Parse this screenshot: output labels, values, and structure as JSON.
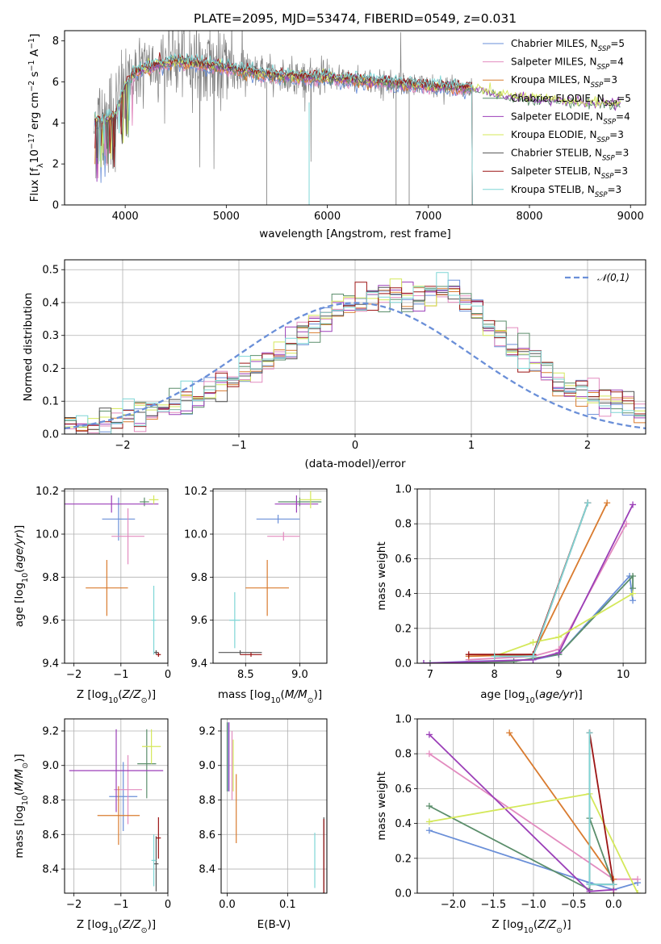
{
  "figure": {
    "title": "PLATE=2095, MJD=53474, FIBERID=0549, z=0.031"
  },
  "colors": [
    "#6a8fd8",
    "#e28bbf",
    "#d97b2f",
    "#5b8e6b",
    "#9b3fb8",
    "#d4e85a",
    "#555555",
    "#9c1515",
    "#7fd6d6"
  ],
  "legend_entries": [
    "Chabrier MILES, N_SSP=5",
    "Salpeter MILES, N_SSP=4",
    "Kroupa MILES, N_SSP=3",
    "Chabrier ELODIE, N_SSP=5",
    "Salpeter ELODIE, N_SSP=4",
    "Kroupa ELODIE, N_SSP=3",
    "Chabrier STELIB, N_SSP=3",
    "Salpeter STELIB, N_SSP=3",
    "Kroupa STELIB, N_SSP=3"
  ],
  "legend_display": [
    {
      "main": "Chabrier MILES, N",
      "sub": "SSP",
      "tail": "=5"
    },
    {
      "main": "Salpeter MILES, N",
      "sub": "SSP",
      "tail": "=4"
    },
    {
      "main": "Kroupa MILES, N",
      "sub": "SSP",
      "tail": "=3"
    },
    {
      "main": "Chabrier ELODIE, N",
      "sub": "SSP",
      "tail": "=5"
    },
    {
      "main": "Salpeter ELODIE, N",
      "sub": "SSP",
      "tail": "=4"
    },
    {
      "main": "Kroupa ELODIE, N",
      "sub": "SSP",
      "tail": "=3"
    },
    {
      "main": "Chabrier STELIB, N",
      "sub": "SSP",
      "tail": "=3"
    },
    {
      "main": "Salpeter STELIB, N",
      "sub": "SSP",
      "tail": "=3"
    },
    {
      "main": "Kroupa STELIB, N",
      "sub": "SSP",
      "tail": "=3"
    }
  ],
  "chart_data": [
    {
      "type": "line",
      "id": "spectrum",
      "title": "PLATE=2095, MJD=53474, FIBERID=0549, z=0.031",
      "xlabel": "wavelength [Angstrom, rest frame]",
      "ylabel": "Flux [f_λ 10^-17 erg cm^-2 s^-1 A^-1]",
      "xlim": [
        3400,
        9150
      ],
      "ylim": [
        0,
        8.5
      ],
      "xticks": [
        4000,
        5000,
        6000,
        7000,
        8000,
        9000
      ],
      "yticks": [
        0,
        2,
        4,
        6,
        8
      ],
      "grid": false,
      "legend": "top-right",
      "data_range": [
        3700,
        7430
      ],
      "data_range_elodie": [
        3700,
        8900
      ],
      "data_shape": {
        "x": [
          3700,
          3900,
          4000,
          4100,
          4300,
          4500,
          4700,
          5000,
          5200,
          5500,
          6000,
          6500,
          6800,
          7000,
          7400,
          7800,
          8200,
          8500,
          8900
        ],
        "y": [
          4.0,
          4.3,
          5.8,
          6.5,
          6.8,
          7.0,
          6.9,
          6.7,
          6.5,
          6.3,
          6.2,
          6.0,
          5.9,
          5.8,
          5.7,
          5.3,
          5.1,
          5.0,
          4.9
        ]
      }
    },
    {
      "type": "bar",
      "id": "residuals",
      "xlabel": "(data-model)/error",
      "ylabel": "Normed distribution",
      "xlim": [
        -2.5,
        2.5
      ],
      "ylim": [
        0,
        0.53
      ],
      "xticks": [
        -2,
        -1,
        0,
        1,
        2
      ],
      "yticks": [
        0.0,
        0.1,
        0.2,
        0.3,
        0.4,
        0.5
      ],
      "grid": true,
      "legend": "top-right",
      "reference_curve": {
        "name": "𝒩(0,1)",
        "mean": 0,
        "sigma": 1
      },
      "bin_width": 0.1,
      "bins_from": -2.5,
      "values": [
        0.02,
        0.02,
        0.03,
        0.03,
        0.04,
        0.05,
        0.06,
        0.07,
        0.08,
        0.09,
        0.1,
        0.11,
        0.13,
        0.14,
        0.16,
        0.18,
        0.2,
        0.22,
        0.25,
        0.27,
        0.3,
        0.33,
        0.36,
        0.38,
        0.4,
        0.41,
        0.42,
        0.43,
        0.43,
        0.42,
        0.42,
        0.43,
        0.44,
        0.43,
        0.4,
        0.37,
        0.33,
        0.3,
        0.27,
        0.24,
        0.22,
        0.19,
        0.16,
        0.14,
        0.12,
        0.11,
        0.1,
        0.09,
        0.08,
        0.07,
        0.06,
        0.05,
        0.04,
        0.03
      ]
    },
    {
      "type": "scatter",
      "id": "age-vs-Z",
      "xlabel": "Z [log10(Z/Z⊙)]",
      "ylabel": "age [log10(age/yr)]",
      "xlim": [
        -2.2,
        0.0
      ],
      "ylim": [
        9.4,
        10.21
      ],
      "xticks": [
        -2,
        -1,
        0
      ],
      "yticks": [
        9.4,
        9.6,
        9.8,
        10.0,
        10.2
      ],
      "grid": true,
      "points": [
        {
          "x": -1.05,
          "xerr": 0.35,
          "y": 10.07,
          "yerr": 0.1
        },
        {
          "x": -0.85,
          "xerr": 0.35,
          "y": 9.99,
          "yerr": 0.13
        },
        {
          "x": -1.3,
          "xerr": 0.45,
          "y": 9.75,
          "yerr": 0.13
        },
        {
          "x": -0.5,
          "xerr": 0.1,
          "y": 10.15,
          "yerr": 0.02
        },
        {
          "x": -1.2,
          "xerr": 1.0,
          "y": 10.14,
          "yerr": 0.04
        },
        {
          "x": -0.3,
          "xerr": 0.1,
          "y": 10.16,
          "yerr": 0.02
        },
        {
          "x": -0.25,
          "xerr": 0.05,
          "y": 9.45,
          "yerr": 0.01
        },
        {
          "x": -0.2,
          "xerr": 0.05,
          "y": 9.44,
          "yerr": 0.01
        },
        {
          "x": -0.3,
          "xerr": 0.05,
          "y": 9.6,
          "yerr": 0.16
        }
      ]
    },
    {
      "type": "scatter",
      "id": "age-vs-mass",
      "xlabel": "mass [log10(M/M⊙)]",
      "ylabel": "",
      "xlim": [
        8.2,
        9.25
      ],
      "ylim": [
        9.4,
        10.21
      ],
      "xticks": [
        8.5,
        9.0
      ],
      "yticks": [
        9.4,
        9.6,
        9.8,
        10.0,
        10.2
      ],
      "grid": true,
      "points": [
        {
          "x": 8.8,
          "xerr": 0.2,
          "y": 10.07,
          "yerr": 0.02
        },
        {
          "x": 8.85,
          "xerr": 0.15,
          "y": 9.99,
          "yerr": 0.02
        },
        {
          "x": 8.7,
          "xerr": 0.2,
          "y": 9.75,
          "yerr": 0.13
        },
        {
          "x": 9.0,
          "xerr": 0.2,
          "y": 10.15,
          "yerr": 0.02
        },
        {
          "x": 8.97,
          "xerr": 0.2,
          "y": 10.14,
          "yerr": 0.04
        },
        {
          "x": 9.1,
          "xerr": 0.1,
          "y": 10.16,
          "yerr": 0.04
        },
        {
          "x": 8.45,
          "xerr": 0.2,
          "y": 9.45,
          "yerr": 0.01
        },
        {
          "x": 8.55,
          "xerr": 0.1,
          "y": 9.44,
          "yerr": 0.01
        },
        {
          "x": 8.4,
          "xerr": 0.05,
          "y": 9.6,
          "yerr": 0.13
        }
      ]
    },
    {
      "type": "line",
      "id": "mass-weight-vs-age",
      "xlabel": "age [log10(age/yr)]",
      "ylabel": "mass weight",
      "xlim": [
        6.8,
        10.35
      ],
      "ylim": [
        0,
        1
      ],
      "xticks": [
        7,
        8,
        9,
        10
      ],
      "yticks": [
        0.0,
        0.2,
        0.4,
        0.6,
        0.8,
        1.0
      ],
      "grid": true,
      "series": [
        {
          "x": [
            6.9,
            7.6,
            8.6,
            9.0,
            10.1,
            10.15
          ],
          "y": [
            0.0,
            0.01,
            0.02,
            0.05,
            0.5,
            0.36
          ]
        },
        {
          "x": [
            7.6,
            8.6,
            9.0,
            10.05
          ],
          "y": [
            0.02,
            0.04,
            0.08,
            0.8
          ]
        },
        {
          "x": [
            7.6,
            8.6,
            9.75
          ],
          "y": [
            0.04,
            0.05,
            0.92
          ]
        },
        {
          "x": [
            7.0,
            8.3,
            9.0,
            10.15,
            10.15
          ],
          "y": [
            0.0,
            0.01,
            0.05,
            0.5,
            0.43
          ]
        },
        {
          "x": [
            6.9,
            8.6,
            9.0,
            10.15
          ],
          "y": [
            0.0,
            0.02,
            0.06,
            0.91
          ]
        },
        {
          "x": [
            8.0,
            8.6,
            9.0,
            10.15
          ],
          "y": [
            0.04,
            0.12,
            0.15,
            0.4
          ]
        },
        {
          "x": [
            8.0,
            8.6,
            9.45
          ],
          "y": [
            0.04,
            0.04,
            0.92
          ]
        },
        {
          "x": [
            7.6,
            8.6,
            9.45
          ],
          "y": [
            0.05,
            0.05,
            0.92
          ]
        },
        {
          "x": [
            8.0,
            8.6,
            9.45
          ],
          "y": [
            0.04,
            0.04,
            0.92
          ]
        }
      ]
    },
    {
      "type": "scatter",
      "id": "mass-vs-Z",
      "xlabel": "Z [log10(Z/Z⊙)]",
      "ylabel": "mass [log10(M/M⊙)]",
      "xlim": [
        -2.2,
        0.0
      ],
      "ylim": [
        8.26,
        9.27
      ],
      "xticks": [
        -2,
        -1,
        0
      ],
      "yticks": [
        8.4,
        8.6,
        8.8,
        9.0,
        9.2
      ],
      "grid": true,
      "points": [
        {
          "x": -0.95,
          "xerr": 0.3,
          "y": 8.82,
          "yerr": 0.2
        },
        {
          "x": -0.85,
          "xerr": 0.3,
          "y": 8.86,
          "yerr": 0.2
        },
        {
          "x": -1.05,
          "xerr": 0.45,
          "y": 8.71,
          "yerr": 0.17
        },
        {
          "x": -0.45,
          "xerr": 0.2,
          "y": 9.01,
          "yerr": 0.2
        },
        {
          "x": -1.1,
          "xerr": 1.0,
          "y": 8.97,
          "yerr": 0.24
        },
        {
          "x": -0.35,
          "xerr": 0.2,
          "y": 9.11,
          "yerr": 0.1
        },
        {
          "x": -0.25,
          "xerr": 0.05,
          "y": 8.43,
          "yerr": 0.16
        },
        {
          "x": -0.2,
          "xerr": 0.05,
          "y": 8.58,
          "yerr": 0.12
        },
        {
          "x": -0.3,
          "xerr": 0.05,
          "y": 8.45,
          "yerr": 0.15
        }
      ]
    },
    {
      "type": "scatter",
      "id": "mass-vs-EBV",
      "xlabel": "E(B-V)",
      "ylabel": "",
      "xlim": [
        -0.01,
        0.165
      ],
      "ylim": [
        8.26,
        9.27
      ],
      "xticks": [
        0.0,
        0.1
      ],
      "yticks": [
        8.4,
        8.6,
        8.8,
        9.0,
        9.2
      ],
      "grid": true,
      "points": [
        {
          "x": 0.002,
          "y": 9.05,
          "yerr": 0.2
        },
        {
          "x": 0.008,
          "y": 9.0,
          "yerr": 0.2
        },
        {
          "x": 0.015,
          "y": 8.75,
          "yerr": 0.2
        },
        {
          "x": 0.0,
          "y": 9.05,
          "yerr": 0.2
        },
        {
          "x": 0.003,
          "y": 9.05,
          "yerr": 0.2
        },
        {
          "x": 0.01,
          "y": 9.0,
          "yerr": 0.15
        },
        {
          "x": 0.16,
          "y": 8.48,
          "yerr": 0.22
        },
        {
          "x": 0.16,
          "y": 8.47,
          "yerr": 0.22
        },
        {
          "x": 0.145,
          "y": 8.45,
          "yerr": 0.16
        }
      ]
    },
    {
      "type": "line",
      "id": "mass-weight-vs-Z",
      "xlabel": "Z [log10(Z/Z⊙)]",
      "ylabel": "mass weight",
      "xlim": [
        -2.45,
        0.4
      ],
      "ylim": [
        0,
        1
      ],
      "xticks": [
        -2.0,
        -1.5,
        -1.0,
        -0.5,
        0.0
      ],
      "yticks": [
        0.0,
        0.2,
        0.4,
        0.6,
        0.8,
        1.0
      ],
      "grid": true,
      "series": [
        {
          "x": [
            -2.3,
            -0.3,
            0.0,
            0.3
          ],
          "y": [
            0.36,
            0.06,
            0.02,
            0.06
          ]
        },
        {
          "x": [
            -2.3,
            0.0,
            0.3
          ],
          "y": [
            0.8,
            0.08,
            0.08
          ]
        },
        {
          "x": [
            -1.3,
            0.0,
            0.0
          ],
          "y": [
            0.92,
            0.08,
            0.0
          ]
        },
        {
          "x": [
            -2.3,
            -0.3,
            -0.3,
            0.0
          ],
          "y": [
            0.5,
            0.02,
            0.43,
            0.05
          ]
        },
        {
          "x": [
            -2.3,
            -0.3,
            0.0
          ],
          "y": [
            0.91,
            0.01,
            0.02
          ]
        },
        {
          "x": [
            -2.3,
            -0.3,
            0.3
          ],
          "y": [
            0.41,
            0.57,
            0.0
          ]
        },
        {
          "x": [
            -0.3,
            -0.3,
            0.0
          ],
          "y": [
            0.92,
            0.05,
            0.05
          ]
        },
        {
          "x": [
            -0.3,
            0.0
          ],
          "y": [
            0.92,
            0.05
          ]
        },
        {
          "x": [
            -0.3,
            -0.3,
            0.0
          ],
          "y": [
            0.92,
            0.05,
            0.05
          ]
        }
      ]
    }
  ]
}
